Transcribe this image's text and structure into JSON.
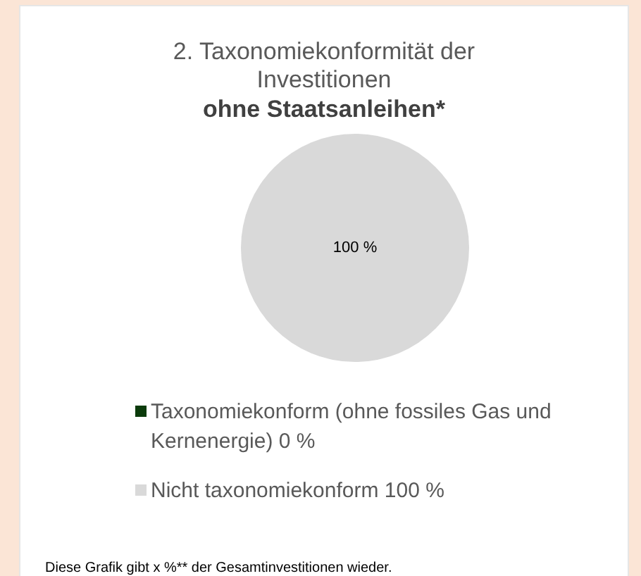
{
  "chart_data": {
    "type": "pie",
    "title": "2. Taxonomiekonformität der Investitionen",
    "subtitle": "ohne Staatsanleihen*",
    "categories": [
      "Taxonomiekonform (ohne fossiles Gas und Kernenergie) 0 %",
      "Nicht taxonomiekonform 100 %"
    ],
    "values": [
      0,
      100
    ],
    "colors": [
      "#0b3b0b",
      "#d9d9d9"
    ],
    "value_labels": [
      null,
      "100 %"
    ],
    "legend": "bottom",
    "annotations": [
      "Diese Grafik gibt x %** der Gesamtinvestitionen wieder."
    ]
  }
}
